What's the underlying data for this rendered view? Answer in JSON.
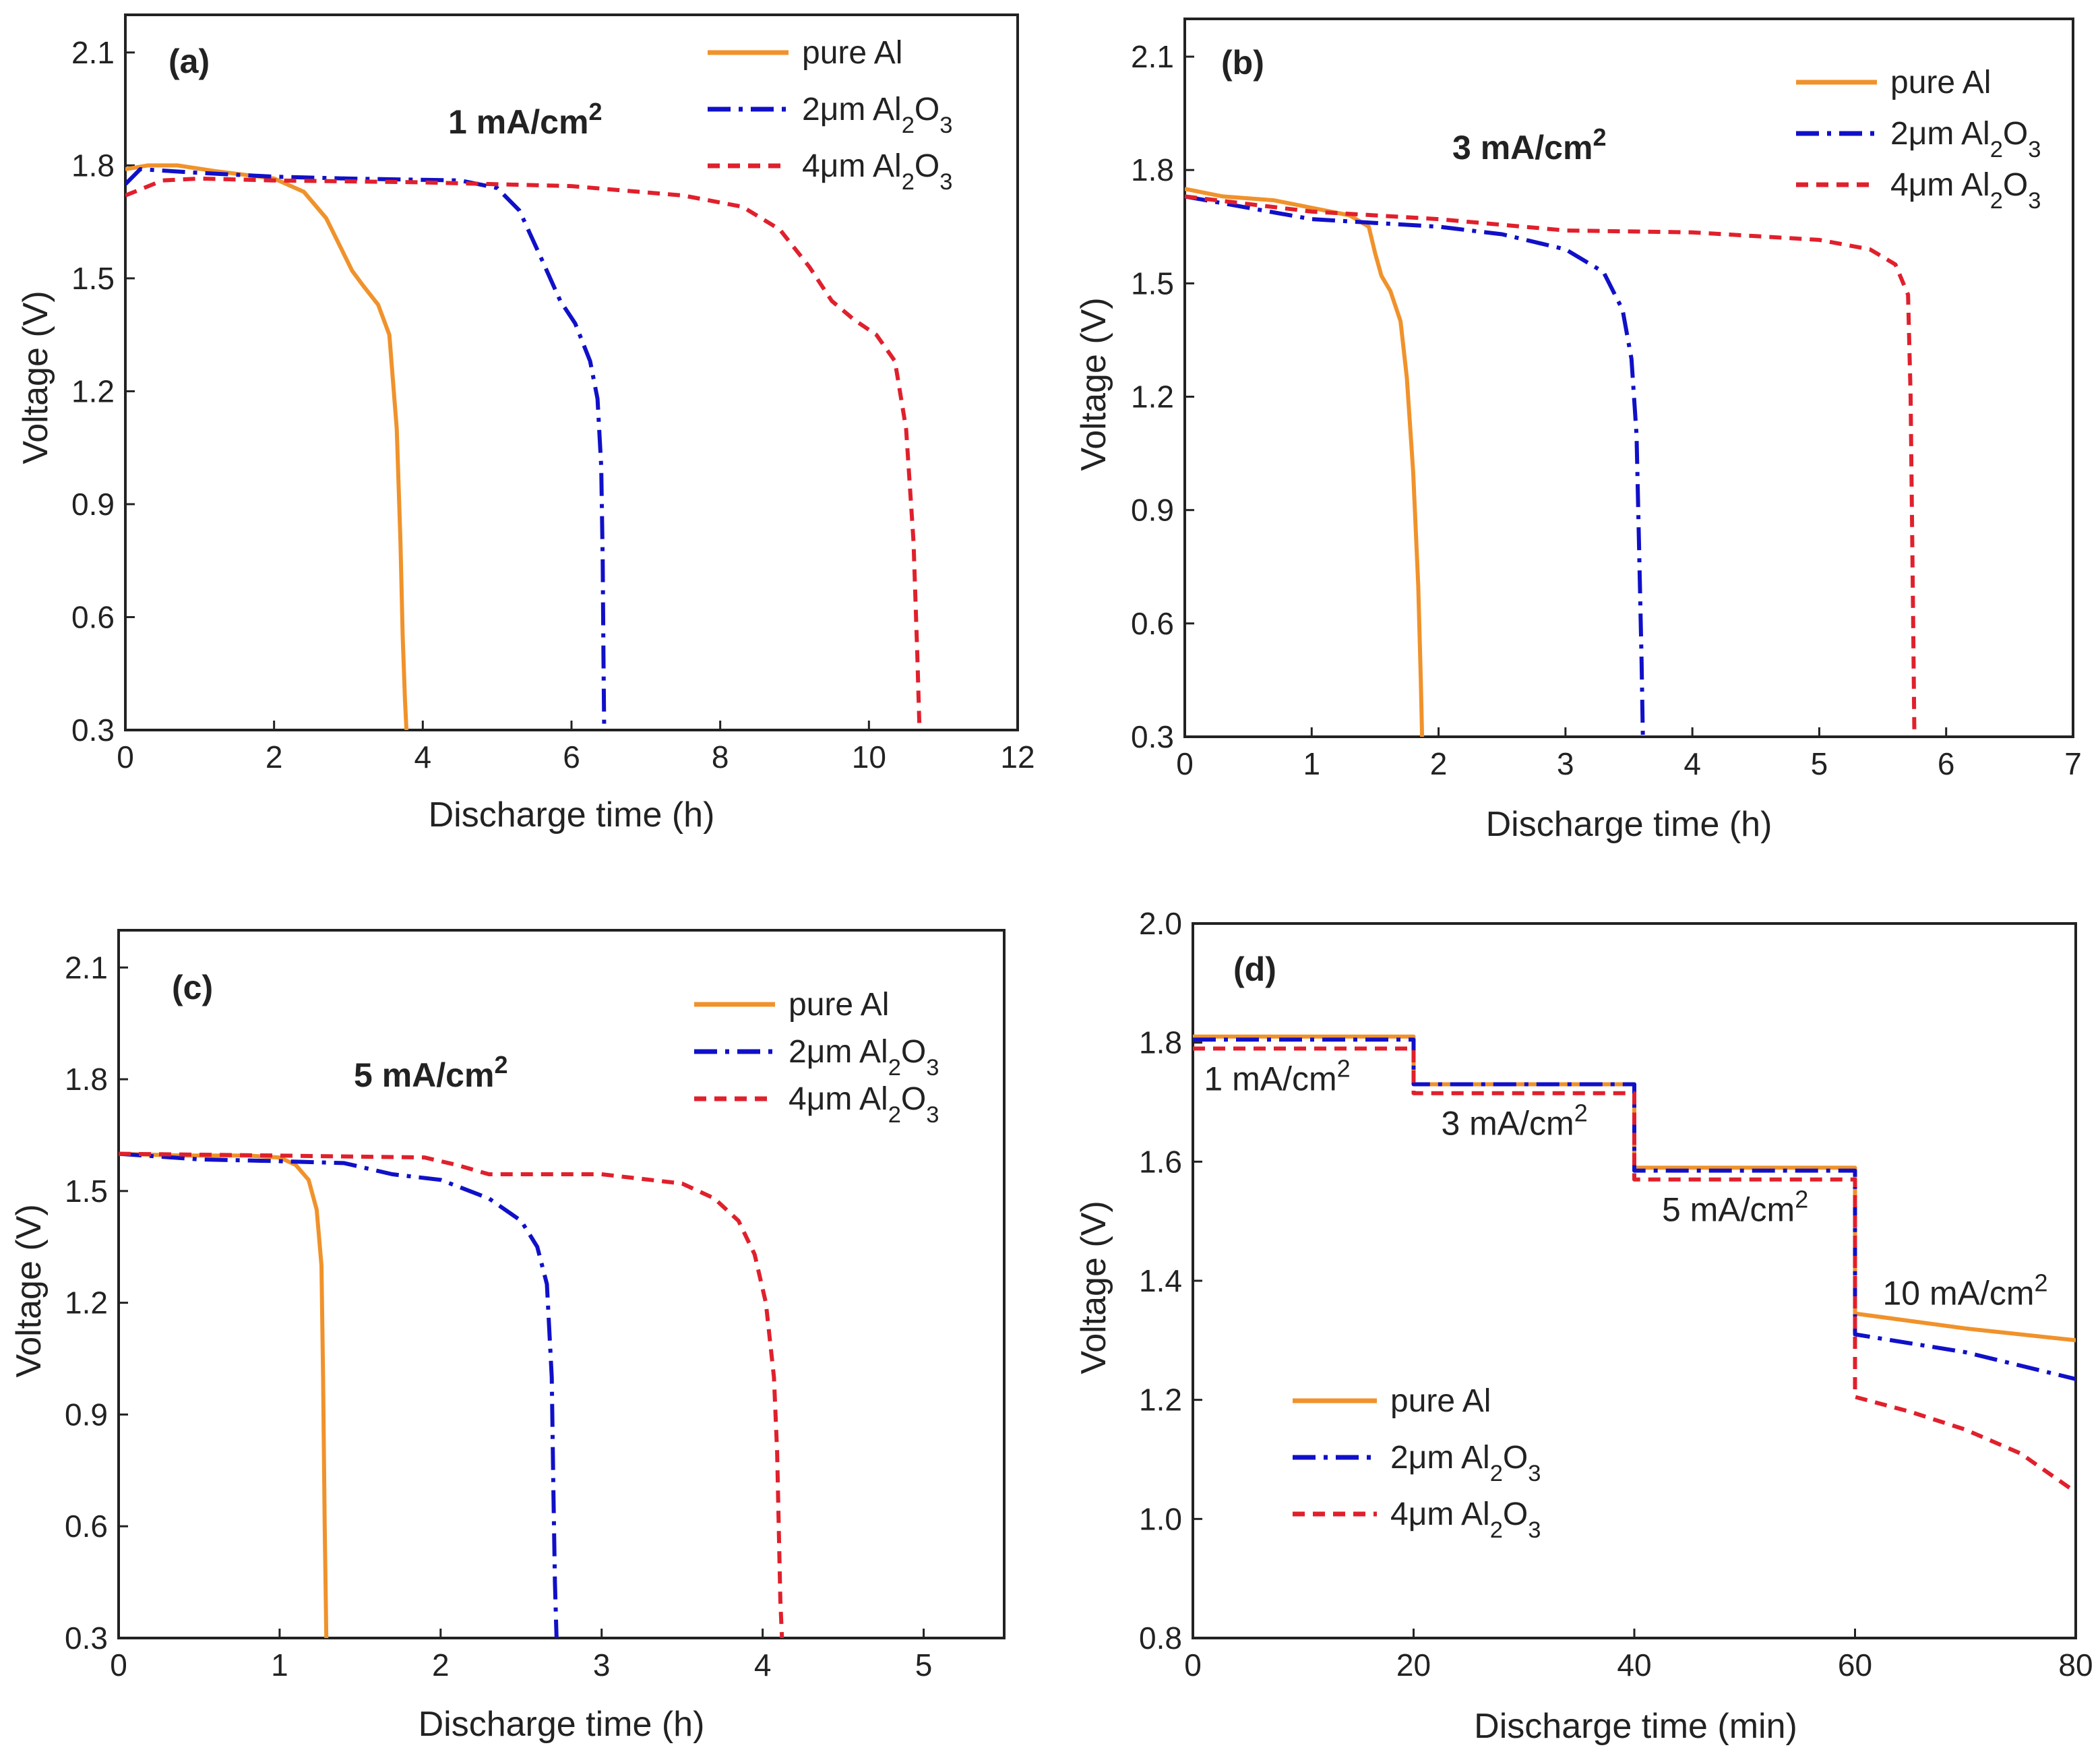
{
  "colors": {
    "pure_al": "#F0922B",
    "al2o3_2um": "#1010C8",
    "al2o3_4um": "#E0202C",
    "axis": "#222222"
  },
  "chart_data": [
    {
      "id": "a",
      "type": "line",
      "panel_label": "(a)",
      "annotation": "1 mA/cm²",
      "xlabel": "Discharge time (h)",
      "ylabel": "Voltage (V)",
      "xlim": [
        0,
        12
      ],
      "ylim": [
        0.3,
        2.2
      ],
      "xticks": [
        "0",
        "2",
        "4",
        "6",
        "8",
        "10",
        "12"
      ],
      "yticks": [
        "0.3",
        "0.6",
        "0.9",
        "1.2",
        "1.5",
        "1.8",
        "2.1"
      ],
      "legend": [
        "pure Al",
        "2μm Al₂O₃",
        "4μm Al₂O₃"
      ],
      "legend_position": "top-right",
      "series": [
        {
          "name": "pure Al",
          "x": [
            0,
            0.3,
            0.7,
            1.2,
            2,
            2.4,
            2.7,
            2.9,
            3.05,
            3.2,
            3.4,
            3.55,
            3.65,
            3.7,
            3.73,
            3.76,
            3.78
          ],
          "y": [
            1.79,
            1.8,
            1.8,
            1.785,
            1.765,
            1.73,
            1.66,
            1.58,
            1.52,
            1.48,
            1.43,
            1.35,
            1.1,
            0.8,
            0.55,
            0.38,
            0.3
          ]
        },
        {
          "name": "2μm Al₂O₃",
          "x": [
            0,
            0.2,
            1,
            2,
            3,
            4.5,
            5,
            5.3,
            5.6,
            5.85,
            6.05,
            6.25,
            6.35,
            6.4,
            6.42,
            6.43,
            6.44
          ],
          "y": [
            1.75,
            1.79,
            1.78,
            1.77,
            1.765,
            1.76,
            1.74,
            1.68,
            1.55,
            1.44,
            1.38,
            1.28,
            1.18,
            1.0,
            0.75,
            0.5,
            0.3
          ]
        },
        {
          "name": "4μm Al₂O₃",
          "x": [
            0,
            0.5,
            1,
            2,
            4,
            6,
            7.5,
            8.3,
            8.8,
            9.2,
            9.5,
            9.8,
            10.1,
            10.35,
            10.5,
            10.6,
            10.65,
            10.68
          ],
          "y": [
            1.72,
            1.76,
            1.765,
            1.76,
            1.755,
            1.745,
            1.72,
            1.69,
            1.63,
            1.53,
            1.44,
            1.39,
            1.35,
            1.28,
            1.1,
            0.8,
            0.5,
            0.3
          ]
        }
      ]
    },
    {
      "id": "b",
      "type": "line",
      "panel_label": "(b)",
      "annotation": "3 mA/cm²",
      "xlabel": "Discharge time (h)",
      "ylabel": "Voltage (V)",
      "xlim": [
        0,
        7
      ],
      "ylim": [
        0.3,
        2.2
      ],
      "xticks": [
        "0",
        "1",
        "2",
        "3",
        "4",
        "5",
        "6",
        "7"
      ],
      "yticks": [
        "0.3",
        "0.6",
        "0.9",
        "1.2",
        "1.5",
        "1.8",
        "2.1"
      ],
      "legend": [
        "pure Al",
        "2μm Al₂O₃",
        "4μm Al₂O₃"
      ],
      "legend_position": "top-right",
      "series": [
        {
          "name": "pure Al",
          "x": [
            0,
            0.3,
            0.7,
            1.0,
            1.3,
            1.45,
            1.5,
            1.55,
            1.62,
            1.7,
            1.75,
            1.8,
            1.84,
            1.86,
            1.87
          ],
          "y": [
            1.75,
            1.73,
            1.72,
            1.7,
            1.68,
            1.65,
            1.58,
            1.52,
            1.48,
            1.4,
            1.25,
            1.0,
            0.7,
            0.45,
            0.3
          ]
        },
        {
          "name": "2μm Al₂O₃",
          "x": [
            0,
            0.5,
            1.0,
            1.5,
            2.0,
            2.5,
            3.0,
            3.3,
            3.45,
            3.52,
            3.56,
            3.58,
            3.6,
            3.61
          ],
          "y": [
            1.73,
            1.7,
            1.67,
            1.66,
            1.65,
            1.63,
            1.59,
            1.53,
            1.43,
            1.3,
            1.1,
            0.8,
            0.5,
            0.3
          ]
        },
        {
          "name": "4μm Al₂O₃",
          "x": [
            0,
            1.0,
            2.0,
            3.0,
            4.0,
            4.5,
            5.0,
            5.4,
            5.6,
            5.7,
            5.72,
            5.73,
            5.74,
            5.75
          ],
          "y": [
            1.73,
            1.69,
            1.67,
            1.64,
            1.635,
            1.625,
            1.615,
            1.59,
            1.55,
            1.47,
            1.2,
            0.9,
            0.6,
            0.3
          ]
        }
      ]
    },
    {
      "id": "c",
      "type": "line",
      "panel_label": "(c)",
      "annotation": "5 mA/cm²",
      "xlabel": "Discharge time (h)",
      "ylabel": "Voltage (V)",
      "xlim": [
        0,
        5.5
      ],
      "ylim": [
        0.3,
        2.2
      ],
      "xticks": [
        "0",
        "1",
        "2",
        "3",
        "4",
        "5"
      ],
      "yticks": [
        "0.3",
        "0.6",
        "0.9",
        "1.2",
        "1.5",
        "1.8",
        "2.1"
      ],
      "legend": [
        "pure Al",
        "2μm Al₂O₃",
        "4μm Al₂O₃"
      ],
      "legend_position": "top-right",
      "series": [
        {
          "name": "pure Al",
          "x": [
            0,
            0.4,
            0.8,
            1.0,
            1.1,
            1.18,
            1.23,
            1.26,
            1.27,
            1.28,
            1.29
          ],
          "y": [
            1.6,
            1.595,
            1.595,
            1.59,
            1.57,
            1.53,
            1.45,
            1.3,
            1.0,
            0.6,
            0.3
          ]
        },
        {
          "name": "2μm Al₂O₃",
          "x": [
            0,
            0.5,
            1.0,
            1.4,
            1.7,
            2.0,
            2.3,
            2.5,
            2.6,
            2.66,
            2.69,
            2.7,
            2.71,
            2.72
          ],
          "y": [
            1.6,
            1.585,
            1.58,
            1.575,
            1.545,
            1.53,
            1.48,
            1.42,
            1.35,
            1.25,
            1.0,
            0.7,
            0.45,
            0.3
          ]
        },
        {
          "name": "4μm Al₂O₃",
          "x": [
            0,
            1.0,
            1.9,
            2.1,
            2.3,
            3.0,
            3.5,
            3.7,
            3.85,
            3.95,
            4.02,
            4.07,
            4.09,
            4.1,
            4.11,
            4.12
          ],
          "y": [
            1.6,
            1.595,
            1.59,
            1.57,
            1.545,
            1.545,
            1.52,
            1.48,
            1.42,
            1.33,
            1.2,
            1.0,
            0.8,
            0.6,
            0.4,
            0.3
          ]
        }
      ]
    },
    {
      "id": "d",
      "type": "line",
      "panel_label": "(d)",
      "xlabel": "Discharge time (min)",
      "ylabel": "Voltage (V)",
      "xlim": [
        0,
        80
      ],
      "ylim": [
        0.8,
        2.0
      ],
      "xticks": [
        "0",
        "20",
        "40",
        "60",
        "80"
      ],
      "yticks": [
        "0.8",
        "1.0",
        "1.2",
        "1.4",
        "1.6",
        "1.8",
        "2.0"
      ],
      "legend": [
        "pure Al",
        "2μm Al₂O₃",
        "4μm Al₂O₃"
      ],
      "legend_position": "bottom-left",
      "step_labels": [
        {
          "text": "1 mA/cm²",
          "x": 1,
          "y": 1.72
        },
        {
          "text": "3 mA/cm²",
          "x": 22.5,
          "y": 1.645
        },
        {
          "text": "5 mA/cm²",
          "x": 42.5,
          "y": 1.5
        },
        {
          "text": "10 mA/cm²",
          "x": 62.5,
          "y": 1.36
        }
      ],
      "series": [
        {
          "name": "pure Al",
          "x": [
            0,
            20,
            20,
            40,
            40,
            60,
            60,
            70,
            80
          ],
          "y": [
            1.81,
            1.81,
            1.73,
            1.73,
            1.59,
            1.59,
            1.345,
            1.32,
            1.3
          ]
        },
        {
          "name": "2μm Al₂O₃",
          "x": [
            0,
            20,
            20,
            40,
            40,
            60,
            60,
            70,
            80
          ],
          "y": [
            1.805,
            1.805,
            1.73,
            1.73,
            1.585,
            1.585,
            1.31,
            1.28,
            1.235
          ]
        },
        {
          "name": "4μm Al₂O₃",
          "x": [
            0,
            20,
            20,
            40,
            40,
            60,
            60,
            65,
            70,
            75,
            80
          ],
          "y": [
            1.79,
            1.79,
            1.715,
            1.715,
            1.57,
            1.57,
            1.205,
            1.18,
            1.15,
            1.11,
            1.045
          ]
        }
      ]
    }
  ]
}
